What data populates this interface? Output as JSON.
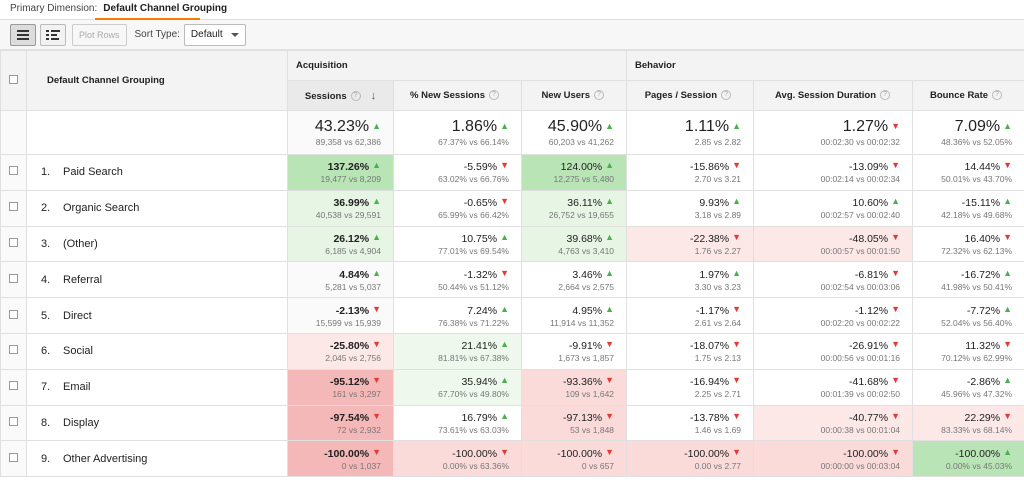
{
  "topbar": {
    "primary_label": "Primary Dimension:",
    "primary_value": "Default Channel Grouping"
  },
  "toolbar": {
    "plot_rows": "Plot Rows",
    "sort_type_label": "Sort Type:",
    "sort_type_value": "Default"
  },
  "groups": {
    "acquisition": "Acquisition",
    "behavior": "Behavior"
  },
  "columns": {
    "dimension": "Default Channel Grouping",
    "sessions": "Sessions",
    "new_sessions": "% New Sessions",
    "new_users": "New Users",
    "pages_session": "Pages / Session",
    "avg_duration": "Avg. Session Duration",
    "bounce_rate": "Bounce Rate"
  },
  "totals": {
    "sessions": {
      "val": "43.23%",
      "sub": "89,358 vs 62,386",
      "dir": "up"
    },
    "new_sessions": {
      "val": "1.86%",
      "sub": "67.37% vs 66.14%",
      "dir": "up"
    },
    "new_users": {
      "val": "45.90%",
      "sub": "60,203 vs 41,262",
      "dir": "up"
    },
    "pages_session": {
      "val": "1.11%",
      "sub": "2.85 vs 2.82",
      "dir": "up"
    },
    "avg_duration": {
      "val": "1.27%",
      "sub": "00:02:30 vs 00:02:32",
      "dir": "down"
    },
    "bounce_rate": {
      "val": "7.09%",
      "sub": "48.36% vs 52.05%",
      "dir": "up"
    }
  },
  "rows": [
    {
      "idx": "1.",
      "name": "Paid Search",
      "sessions": {
        "val": "137.26%",
        "sub": "19,477 vs 8,209",
        "dir": "up"
      },
      "new_sessions": {
        "val": "-5.59%",
        "sub": "63.02% vs 66.76%",
        "dir": "down"
      },
      "new_users": {
        "val": "124.00%",
        "sub": "12,275 vs 5,480",
        "dir": "up"
      },
      "pages_session": {
        "val": "-15.86%",
        "sub": "2.70 vs 3.21",
        "dir": "down"
      },
      "avg_duration": {
        "val": "-13.09%",
        "sub": "00:02:14 vs 00:02:34",
        "dir": "down"
      },
      "bounce_rate": {
        "val": "14.44%",
        "sub": "50.01% vs 43.70%",
        "dir": "down"
      }
    },
    {
      "idx": "2.",
      "name": "Organic Search",
      "sessions": {
        "val": "36.99%",
        "sub": "40,538 vs 29,591",
        "dir": "up"
      },
      "new_sessions": {
        "val": "-0.65%",
        "sub": "65.99% vs 66.42%",
        "dir": "down"
      },
      "new_users": {
        "val": "36.11%",
        "sub": "26,752 vs 19,655",
        "dir": "up"
      },
      "pages_session": {
        "val": "9.93%",
        "sub": "3.18 vs 2.89",
        "dir": "up"
      },
      "avg_duration": {
        "val": "10.60%",
        "sub": "00:02:57 vs 00:02:40",
        "dir": "up"
      },
      "bounce_rate": {
        "val": "-15.11%",
        "sub": "42.18% vs 49.68%",
        "dir": "up"
      }
    },
    {
      "idx": "3.",
      "name": "(Other)",
      "sessions": {
        "val": "26.12%",
        "sub": "6,185 vs 4,904",
        "dir": "up"
      },
      "new_sessions": {
        "val": "10.75%",
        "sub": "77.01% vs 69.54%",
        "dir": "up"
      },
      "new_users": {
        "val": "39.68%",
        "sub": "4,763 vs 3,410",
        "dir": "up"
      },
      "pages_session": {
        "val": "-22.38%",
        "sub": "1.76 vs 2.27",
        "dir": "down"
      },
      "avg_duration": {
        "val": "-48.05%",
        "sub": "00:00:57 vs 00:01:50",
        "dir": "down"
      },
      "bounce_rate": {
        "val": "16.40%",
        "sub": "72.32% vs 62.13%",
        "dir": "down"
      }
    },
    {
      "idx": "4.",
      "name": "Referral",
      "sessions": {
        "val": "4.84%",
        "sub": "5,281 vs 5,037",
        "dir": "up"
      },
      "new_sessions": {
        "val": "-1.32%",
        "sub": "50.44% vs 51.12%",
        "dir": "down"
      },
      "new_users": {
        "val": "3.46%",
        "sub": "2,664 vs 2,575",
        "dir": "up"
      },
      "pages_session": {
        "val": "1.97%",
        "sub": "3.30 vs 3.23",
        "dir": "up"
      },
      "avg_duration": {
        "val": "-6.81%",
        "sub": "00:02:54 vs 00:03:06",
        "dir": "down"
      },
      "bounce_rate": {
        "val": "-16.72%",
        "sub": "41.98% vs 50.41%",
        "dir": "up"
      }
    },
    {
      "idx": "5.",
      "name": "Direct",
      "sessions": {
        "val": "-2.13%",
        "sub": "15,599 vs 15,939",
        "dir": "down"
      },
      "new_sessions": {
        "val": "7.24%",
        "sub": "76.38% vs 71.22%",
        "dir": "up"
      },
      "new_users": {
        "val": "4.95%",
        "sub": "11,914 vs 11,352",
        "dir": "up"
      },
      "pages_session": {
        "val": "-1.17%",
        "sub": "2.61 vs 2.64",
        "dir": "down"
      },
      "avg_duration": {
        "val": "-1.12%",
        "sub": "00:02:20 vs 00:02:22",
        "dir": "down"
      },
      "bounce_rate": {
        "val": "-7.72%",
        "sub": "52.04% vs 56.40%",
        "dir": "up"
      }
    },
    {
      "idx": "6.",
      "name": "Social",
      "sessions": {
        "val": "-25.80%",
        "sub": "2,045 vs 2,756",
        "dir": "down"
      },
      "new_sessions": {
        "val": "21.41%",
        "sub": "81.81% vs 67.38%",
        "dir": "up"
      },
      "new_users": {
        "val": "-9.91%",
        "sub": "1,673 vs 1,857",
        "dir": "down"
      },
      "pages_session": {
        "val": "-18.07%",
        "sub": "1.75 vs 2.13",
        "dir": "down"
      },
      "avg_duration": {
        "val": "-26.91%",
        "sub": "00:00:56 vs 00:01:16",
        "dir": "down"
      },
      "bounce_rate": {
        "val": "11.32%",
        "sub": "70.12% vs 62.99%",
        "dir": "down"
      }
    },
    {
      "idx": "7.",
      "name": "Email",
      "sessions": {
        "val": "-95.12%",
        "sub": "161 vs 3,297",
        "dir": "down"
      },
      "new_sessions": {
        "val": "35.94%",
        "sub": "67.70% vs 49.80%",
        "dir": "up"
      },
      "new_users": {
        "val": "-93.36%",
        "sub": "109 vs 1,642",
        "dir": "down"
      },
      "pages_session": {
        "val": "-16.94%",
        "sub": "2.25 vs 2.71",
        "dir": "down"
      },
      "avg_duration": {
        "val": "-41.68%",
        "sub": "00:01:39 vs 00:02:50",
        "dir": "down"
      },
      "bounce_rate": {
        "val": "-2.86%",
        "sub": "45.96% vs 47.32%",
        "dir": "up"
      }
    },
    {
      "idx": "8.",
      "name": "Display",
      "sessions": {
        "val": "-97.54%",
        "sub": "72 vs 2,932",
        "dir": "down"
      },
      "new_sessions": {
        "val": "16.79%",
        "sub": "73.61% vs 63.03%",
        "dir": "up"
      },
      "new_users": {
        "val": "-97.13%",
        "sub": "53 vs 1,848",
        "dir": "down"
      },
      "pages_session": {
        "val": "-13.78%",
        "sub": "1.46 vs 1.69",
        "dir": "down"
      },
      "avg_duration": {
        "val": "-40.77%",
        "sub": "00:00:38 vs 00:01:04",
        "dir": "down"
      },
      "bounce_rate": {
        "val": "22.29%",
        "sub": "83.33% vs 68.14%",
        "dir": "down"
      }
    },
    {
      "idx": "9.",
      "name": "Other Advertising",
      "sessions": {
        "val": "-100.00%",
        "sub": "0 vs 1,037",
        "dir": "down"
      },
      "new_sessions": {
        "val": "-100.00%",
        "sub": "0.00% vs 63.36%",
        "dir": "down"
      },
      "new_users": {
        "val": "-100.00%",
        "sub": "0 vs 657",
        "dir": "down"
      },
      "pages_session": {
        "val": "-100.00%",
        "sub": "0.00 vs 2.77",
        "dir": "down"
      },
      "avg_duration": {
        "val": "-100.00%",
        "sub": "00:00:00 vs 00:03:04",
        "dir": "down"
      },
      "bounce_rate": {
        "val": "-100.00%",
        "sub": "0.00% vs 45.03%",
        "dir": "up"
      }
    }
  ],
  "colors": {
    "arrow_up": "#4caf50",
    "arrow_down": "#e53935"
  },
  "icons": {
    "up": "up-arrow-icon",
    "down": "down-arrow-icon",
    "help": "help-icon"
  }
}
